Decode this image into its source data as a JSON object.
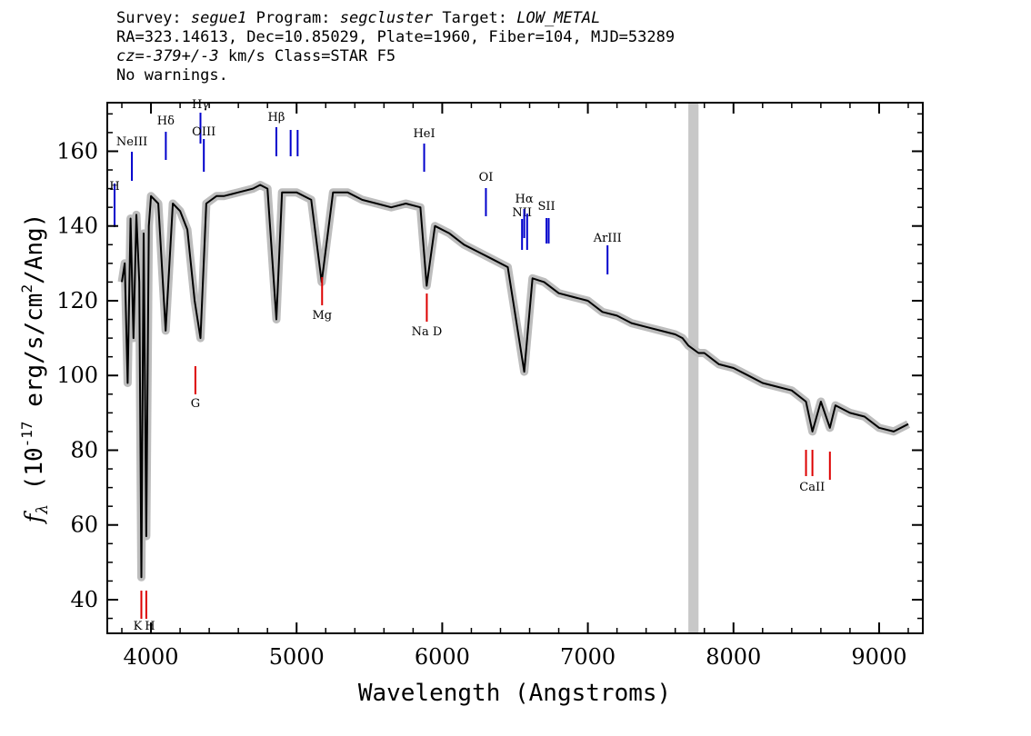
{
  "header": {
    "survey_label": "Survey:",
    "survey": "segue1",
    "program_label": "Program:",
    "program": "segcluster",
    "target_label": "Target:",
    "target": "LOW_METAL",
    "line2": "RA=323.14613, Dec=10.85029, Plate=1960, Fiber=104, MJD=53289",
    "cz_label": "cz=",
    "cz_value": "-379+/-3",
    "cz_rest": " km/s Class=STAR F5",
    "line4": "No warnings."
  },
  "chart_data": {
    "type": "line",
    "xlabel": "Wavelength (Angstroms)",
    "ylabel": "f_λ (10^-17 erg/s/cm^2/Ang)",
    "xlim": [
      3700,
      9300
    ],
    "ylim": [
      31,
      173
    ],
    "xticks": [
      4000,
      5000,
      6000,
      7000,
      8000,
      9000
    ],
    "yticks": [
      40,
      60,
      80,
      100,
      120,
      140,
      160
    ],
    "masked_band": [
      7690,
      7760
    ],
    "series": [
      {
        "color": "#000000",
        "x": [
          3800,
          3820,
          3840,
          3860,
          3880,
          3900,
          3920,
          3934,
          3950,
          3968,
          3985,
          4000,
          4050,
          4101,
          4150,
          4200,
          4250,
          4300,
          4340,
          4380,
          4450,
          4500,
          4600,
          4700,
          4750,
          4800,
          4861,
          4900,
          5000,
          5100,
          5172,
          5250,
          5350,
          5450,
          5550,
          5650,
          5750,
          5850,
          5893,
          5950,
          6050,
          6150,
          6250,
          6350,
          6450,
          6563,
          6620,
          6700,
          6800,
          6900,
          7000,
          7100,
          7200,
          7300,
          7400,
          7500,
          7600,
          7650,
          7690,
          7760,
          7800,
          7900,
          8000,
          8100,
          8200,
          8300,
          8400,
          8498,
          8542,
          8600,
          8662,
          8700,
          8800,
          8900,
          9000,
          9100,
          9200
        ],
        "y": [
          125,
          130,
          98,
          142,
          110,
          143,
          125,
          46,
          138,
          57,
          140,
          148,
          146,
          112,
          146,
          144,
          139,
          120,
          110,
          146,
          148,
          148,
          149,
          150,
          151,
          150,
          115,
          149,
          149,
          147,
          125,
          149,
          149,
          147,
          146,
          145,
          146,
          145,
          124,
          140,
          138,
          135,
          133,
          131,
          129,
          101,
          126,
          125,
          122,
          121,
          120,
          117,
          116,
          114,
          113,
          112,
          111,
          110,
          108,
          106,
          106,
          103,
          102,
          100,
          98,
          97,
          96,
          93,
          85,
          93,
          86,
          92,
          90,
          89,
          86,
          85,
          87
        ]
      }
    ],
    "spectral_lines": [
      {
        "name": "H",
        "wavelength": 3750,
        "type": "emission",
        "color": "#0000cc"
      },
      {
        "name": "NeIII",
        "wavelength": 3869,
        "type": "emission",
        "color": "#0000cc"
      },
      {
        "name": "Hδ",
        "wavelength": 4102,
        "type": "emission",
        "color": "#0000cc"
      },
      {
        "name": "Hγ",
        "wavelength": 4340,
        "type": "emission",
        "color": "#0000cc"
      },
      {
        "name": "OIII",
        "wavelength": 4363,
        "type": "emission",
        "color": "#0000cc"
      },
      {
        "name": "Hβ",
        "wavelength": 4861,
        "type": "emission",
        "color": "#0000cc"
      },
      {
        "name": "OIII",
        "wavelength": 4959,
        "type": "emission",
        "color": "#0000cc"
      },
      {
        "name": "OIII",
        "wavelength": 5007,
        "type": "emission",
        "color": "#0000cc"
      },
      {
        "name": "HeI",
        "wavelength": 5876,
        "type": "emission",
        "color": "#0000cc"
      },
      {
        "name": "OI",
        "wavelength": 6300,
        "type": "emission",
        "color": "#0000cc"
      },
      {
        "name": "NII",
        "wavelength": 6548,
        "type": "emission",
        "color": "#0000cc"
      },
      {
        "name": "Hα",
        "wavelength": 6563,
        "type": "emission",
        "color": "#0000cc"
      },
      {
        "name": "NII",
        "wavelength": 6583,
        "type": "emission",
        "color": "#0000cc"
      },
      {
        "name": "SII",
        "wavelength": 6716,
        "type": "emission",
        "color": "#0000cc"
      },
      {
        "name": "SII",
        "wavelength": 6731,
        "type": "emission",
        "color": "#0000cc"
      },
      {
        "name": "ArIII",
        "wavelength": 7135,
        "type": "emission",
        "color": "#0000cc"
      },
      {
        "name": "K",
        "wavelength": 3934,
        "type": "absorption",
        "color": "#dd0000"
      },
      {
        "name": "H",
        "wavelength": 3968,
        "type": "absorption",
        "color": "#dd0000"
      },
      {
        "name": "G",
        "wavelength": 4305,
        "type": "absorption",
        "color": "#dd0000"
      },
      {
        "name": "Mg",
        "wavelength": 5175,
        "type": "absorption",
        "color": "#dd0000"
      },
      {
        "name": "Na D",
        "wavelength": 5894,
        "type": "absorption",
        "color": "#dd0000"
      },
      {
        "name": "CaII",
        "wavelength": 8498,
        "type": "absorption",
        "color": "#dd0000"
      },
      {
        "name": "CaII",
        "wavelength": 8542,
        "type": "absorption",
        "color": "#dd0000"
      },
      {
        "name": "CaII",
        "wavelength": 8662,
        "type": "absorption",
        "color": "#dd0000"
      }
    ],
    "grid": false,
    "legend": "none"
  }
}
